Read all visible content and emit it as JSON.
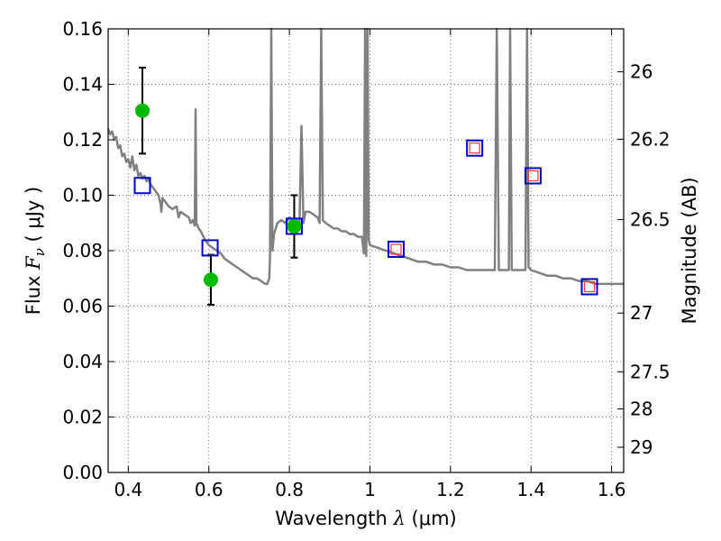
{
  "chart_data": {
    "type": "scatter",
    "xlabel_prefix": "Wavelength",
    "xlabel_symbol": "λ",
    "xlabel_unit": "(μm)",
    "ylabel_prefix": "Flux",
    "ylabel_symbol": "F",
    "ylabel_subscript": "ν",
    "ylabel_unit": "( μJy )",
    "y2label": "Magnitude (AB)",
    "xlim": [
      0.35,
      1.63
    ],
    "ylim": [
      0.0,
      0.16
    ],
    "grid": true,
    "x_ticks": [
      0.4,
      0.6,
      0.8,
      1.0,
      1.2,
      1.4,
      1.6
    ],
    "x_tick_labels": [
      "0.4",
      "0.6",
      "0.8",
      "1",
      "1.2",
      "1.4",
      "1.6"
    ],
    "y_ticks": [
      0.0,
      0.02,
      0.04,
      0.06,
      0.08,
      0.1,
      0.12,
      0.14,
      0.16
    ],
    "y_tick_labels": [
      "0.00",
      "0.02",
      "0.04",
      "0.06",
      "0.08",
      "0.10",
      "0.12",
      "0.14",
      "0.16"
    ],
    "y2_ticks": [
      {
        "label": "26",
        "flux": 0.1445
      },
      {
        "label": "26.2",
        "flux": 0.1202
      },
      {
        "label": "26.5",
        "flux": 0.0912
      },
      {
        "label": "27",
        "flux": 0.0575
      },
      {
        "label": "27.5",
        "flux": 0.0363
      },
      {
        "label": "28",
        "flux": 0.0229
      },
      {
        "label": "29",
        "flux": 0.0091
      }
    ],
    "series": [
      {
        "kind": "model_spectrum",
        "color": "#808080",
        "points": [
          [
            0.35,
            0.124
          ],
          [
            0.355,
            0.122
          ],
          [
            0.36,
            0.123
          ],
          [
            0.365,
            0.12
          ],
          [
            0.37,
            0.121
          ],
          [
            0.375,
            0.117
          ],
          [
            0.38,
            0.118
          ],
          [
            0.385,
            0.114
          ],
          [
            0.39,
            0.115
          ],
          [
            0.395,
            0.112
          ],
          [
            0.4,
            0.113
          ],
          [
            0.405,
            0.11
          ],
          [
            0.41,
            0.114
          ],
          [
            0.415,
            0.109
          ],
          [
            0.42,
            0.111
          ],
          [
            0.425,
            0.107
          ],
          [
            0.43,
            0.108
          ],
          [
            0.435,
            0.106
          ],
          [
            0.44,
            0.107
          ],
          [
            0.445,
            0.105
          ],
          [
            0.45,
            0.106
          ],
          [
            0.455,
            0.104
          ],
          [
            0.46,
            0.103
          ],
          [
            0.465,
            0.102
          ],
          [
            0.47,
            0.101
          ],
          [
            0.475,
            0.1
          ],
          [
            0.48,
            0.097
          ],
          [
            0.482,
            0.094
          ],
          [
            0.485,
            0.099
          ],
          [
            0.49,
            0.098
          ],
          [
            0.495,
            0.097
          ],
          [
            0.5,
            0.096
          ],
          [
            0.51,
            0.095
          ],
          [
            0.52,
            0.096
          ],
          [
            0.525,
            0.092
          ],
          [
            0.53,
            0.094
          ],
          [
            0.54,
            0.093
          ],
          [
            0.55,
            0.092
          ],
          [
            0.555,
            0.09
          ],
          [
            0.56,
            0.091
          ],
          [
            0.565,
            0.089
          ],
          [
            0.567,
            0.131
          ],
          [
            0.569,
            0.09
          ],
          [
            0.575,
            0.088
          ],
          [
            0.58,
            0.087
          ],
          [
            0.59,
            0.084
          ],
          [
            0.6,
            0.082
          ],
          [
            0.61,
            0.081
          ],
          [
            0.62,
            0.08
          ],
          [
            0.63,
            0.079
          ],
          [
            0.64,
            0.077
          ],
          [
            0.65,
            0.076
          ],
          [
            0.66,
            0.075
          ],
          [
            0.67,
            0.074
          ],
          [
            0.68,
            0.073
          ],
          [
            0.69,
            0.072
          ],
          [
            0.7,
            0.071
          ],
          [
            0.71,
            0.07
          ],
          [
            0.72,
            0.07
          ],
          [
            0.73,
            0.069
          ],
          [
            0.74,
            0.068
          ],
          [
            0.745,
            0.068
          ],
          [
            0.75,
            0.07
          ],
          [
            0.752,
            0.078
          ],
          [
            0.755,
            0.16
          ],
          [
            0.758,
            0.08
          ],
          [
            0.762,
            0.086
          ],
          [
            0.77,
            0.09
          ],
          [
            0.78,
            0.091
          ],
          [
            0.79,
            0.09
          ],
          [
            0.8,
            0.092
          ],
          [
            0.81,
            0.091
          ],
          [
            0.82,
            0.09
          ],
          [
            0.825,
            0.089
          ],
          [
            0.83,
            0.125
          ],
          [
            0.835,
            0.09
          ],
          [
            0.84,
            0.094
          ],
          [
            0.85,
            0.094
          ],
          [
            0.86,
            0.093
          ],
          [
            0.87,
            0.092
          ],
          [
            0.875,
            0.09
          ],
          [
            0.879,
            0.16
          ],
          [
            0.883,
            0.091
          ],
          [
            0.89,
            0.09
          ],
          [
            0.9,
            0.089
          ],
          [
            0.91,
            0.088
          ],
          [
            0.92,
            0.088
          ],
          [
            0.93,
            0.087
          ],
          [
            0.94,
            0.087
          ],
          [
            0.95,
            0.086
          ],
          [
            0.96,
            0.086
          ],
          [
            0.97,
            0.085
          ],
          [
            0.98,
            0.085
          ],
          [
            0.985,
            0.079
          ],
          [
            0.988,
            0.16
          ],
          [
            0.991,
            0.078
          ],
          [
            0.994,
            0.16
          ],
          [
            0.997,
            0.084
          ],
          [
            1.0,
            0.082
          ],
          [
            1.02,
            0.081
          ],
          [
            1.04,
            0.08
          ],
          [
            1.06,
            0.079
          ],
          [
            1.08,
            0.078
          ],
          [
            1.1,
            0.077
          ],
          [
            1.12,
            0.076
          ],
          [
            1.14,
            0.076
          ],
          [
            1.16,
            0.075
          ],
          [
            1.18,
            0.075
          ],
          [
            1.2,
            0.074
          ],
          [
            1.22,
            0.074
          ],
          [
            1.24,
            0.073
          ],
          [
            1.26,
            0.073
          ],
          [
            1.28,
            0.073
          ],
          [
            1.3,
            0.073
          ],
          [
            1.31,
            0.073
          ],
          [
            1.315,
            0.16
          ],
          [
            1.32,
            0.073
          ],
          [
            1.33,
            0.073
          ],
          [
            1.345,
            0.073
          ],
          [
            1.348,
            0.16
          ],
          [
            1.352,
            0.073
          ],
          [
            1.36,
            0.073
          ],
          [
            1.37,
            0.073
          ],
          [
            1.38,
            0.073
          ],
          [
            1.386,
            0.073
          ],
          [
            1.39,
            0.16
          ],
          [
            1.394,
            0.074
          ],
          [
            1.4,
            0.073
          ],
          [
            1.42,
            0.072
          ],
          [
            1.44,
            0.071
          ],
          [
            1.46,
            0.071
          ],
          [
            1.48,
            0.07
          ],
          [
            1.5,
            0.07
          ],
          [
            1.52,
            0.069
          ],
          [
            1.54,
            0.069
          ],
          [
            1.56,
            0.068
          ],
          [
            1.58,
            0.068
          ],
          [
            1.6,
            0.068
          ],
          [
            1.63,
            0.068
          ]
        ]
      },
      {
        "kind": "observed",
        "color": "#00bb00",
        "points": [
          {
            "x": 0.435,
            "y": 0.1305,
            "err_low": 0.115,
            "err_high": 0.146
          },
          {
            "x": 0.605,
            "y": 0.0695,
            "err_low": 0.0605,
            "err_high": 0.0785
          },
          {
            "x": 0.812,
            "y": 0.0888,
            "err_low": 0.0775,
            "err_high": 0.1
          }
        ]
      },
      {
        "kind": "model_photometry",
        "color": "#0000cc",
        "points": [
          {
            "x": 0.435,
            "y": 0.1035
          },
          {
            "x": 0.603,
            "y": 0.081
          },
          {
            "x": 0.812,
            "y": 0.0888
          },
          {
            "x": 1.065,
            "y": 0.0805
          },
          {
            "x": 1.26,
            "y": 0.117
          },
          {
            "x": 1.405,
            "y": 0.107
          },
          {
            "x": 1.545,
            "y": 0.067
          }
        ]
      },
      {
        "kind": "predicted",
        "color": "#ff3333",
        "points": [
          {
            "x": 1.065,
            "y": 0.0805
          },
          {
            "x": 1.26,
            "y": 0.117
          },
          {
            "x": 1.405,
            "y": 0.107
          },
          {
            "x": 1.545,
            "y": 0.067
          }
        ]
      }
    ]
  }
}
